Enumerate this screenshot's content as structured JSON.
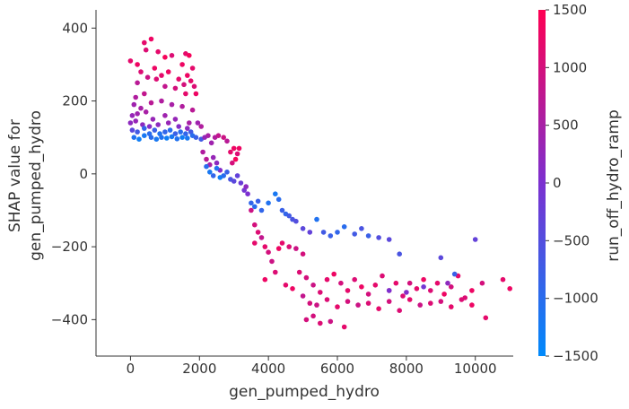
{
  "chart_data": {
    "type": "scatter",
    "title": "",
    "xlabel": "gen_pumped_hydro",
    "ylabel_lines": [
      "SHAP value for",
      "gen_pumped_hydro"
    ],
    "xlim": [
      -1000,
      11100
    ],
    "ylim": [
      -500,
      450
    ],
    "x_ticks": [
      0,
      2000,
      4000,
      6000,
      8000,
      10000
    ],
    "y_ticks": [
      400,
      200,
      0,
      -200,
      -400
    ],
    "x_tick_labels": [
      "0",
      "2000",
      "4000",
      "6000",
      "8000",
      "10000"
    ],
    "y_tick_labels": [
      "400",
      "200",
      "0",
      "−200",
      "−400"
    ],
    "grid": false,
    "colorbar": {
      "label": "run_off_hydro_ramp",
      "range": [
        -1500,
        1500
      ],
      "ticks": [
        1500,
        1000,
        500,
        0,
        -500,
        -1000,
        -1500
      ],
      "tick_labels": [
        "1500",
        "1000",
        "500",
        "0",
        "−500",
        "−1000",
        "−1500"
      ],
      "colors": [
        "#008afb",
        "#7c30d0",
        "#ff0052"
      ]
    },
    "points": [
      [
        0,
        310,
        1200
      ],
      [
        200,
        300,
        1300
      ],
      [
        400,
        360,
        1200
      ],
      [
        450,
        340,
        1100
      ],
      [
        600,
        370,
        1300
      ],
      [
        800,
        335,
        1200
      ],
      [
        1000,
        320,
        1400
      ],
      [
        1200,
        325,
        1100
      ],
      [
        1500,
        300,
        1300
      ],
      [
        1600,
        330,
        1200
      ],
      [
        1700,
        325,
        1400
      ],
      [
        1800,
        290,
        1200
      ],
      [
        300,
        280,
        1100
      ],
      [
        700,
        290,
        1300
      ],
      [
        900,
        270,
        1200
      ],
      [
        1100,
        280,
        1300
      ],
      [
        1400,
        260,
        1200
      ],
      [
        1550,
        245,
        1000
      ],
      [
        1650,
        270,
        1300
      ],
      [
        1750,
        255,
        1200
      ],
      [
        1850,
        240,
        1100
      ],
      [
        200,
        250,
        700
      ],
      [
        500,
        265,
        900
      ],
      [
        750,
        260,
        1100
      ],
      [
        1000,
        240,
        800
      ],
      [
        1300,
        235,
        1000
      ],
      [
        1600,
        220,
        1200
      ],
      [
        1900,
        220,
        1300
      ],
      [
        150,
        210,
        600
      ],
      [
        400,
        220,
        800
      ],
      [
        100,
        190,
        400
      ],
      [
        300,
        180,
        500
      ],
      [
        600,
        195,
        700
      ],
      [
        900,
        200,
        600
      ],
      [
        1200,
        190,
        500
      ],
      [
        1500,
        185,
        600
      ],
      [
        1800,
        175,
        700
      ],
      [
        50,
        160,
        300
      ],
      [
        200,
        165,
        400
      ],
      [
        450,
        170,
        500
      ],
      [
        650,
        150,
        300
      ],
      [
        1000,
        160,
        400
      ],
      [
        1300,
        150,
        300
      ],
      [
        1700,
        140,
        500
      ],
      [
        0,
        140,
        200
      ],
      [
        150,
        145,
        300
      ],
      [
        350,
        135,
        200
      ],
      [
        550,
        130,
        100
      ],
      [
        800,
        135,
        200
      ],
      [
        1100,
        140,
        300
      ],
      [
        1400,
        130,
        100
      ],
      [
        1650,
        125,
        200
      ],
      [
        1950,
        140,
        400
      ],
      [
        2050,
        130,
        600
      ],
      [
        50,
        120,
        -400
      ],
      [
        200,
        115,
        -700
      ],
      [
        400,
        125,
        -900
      ],
      [
        550,
        110,
        -1000
      ],
      [
        700,
        120,
        -800
      ],
      [
        850,
        110,
        -1100
      ],
      [
        1000,
        115,
        -900
      ],
      [
        1150,
        120,
        -1000
      ],
      [
        1300,
        110,
        -800
      ],
      [
        1450,
        115,
        -1000
      ],
      [
        1600,
        110,
        -900
      ],
      [
        1750,
        115,
        -700
      ],
      [
        100,
        100,
        -1100
      ],
      [
        250,
        95,
        -1300
      ],
      [
        400,
        105,
        -1200
      ],
      [
        600,
        100,
        -1000
      ],
      [
        750,
        95,
        -1200
      ],
      [
        900,
        100,
        -1100
      ],
      [
        1050,
        98,
        -1300
      ],
      [
        1200,
        102,
        -1200
      ],
      [
        1350,
        96,
        -1100
      ],
      [
        1500,
        100,
        -1300
      ],
      [
        1650,
        98,
        -1200
      ],
      [
        1800,
        105,
        -1000
      ],
      [
        1900,
        100,
        -800
      ],
      [
        2050,
        95,
        -700
      ],
      [
        2100,
        60,
        600
      ],
      [
        2200,
        40,
        700
      ],
      [
        2300,
        25,
        500
      ],
      [
        2400,
        45,
        300
      ],
      [
        2500,
        30,
        200
      ],
      [
        2600,
        10,
        100
      ],
      [
        2150,
        100,
        300
      ],
      [
        2250,
        105,
        500
      ],
      [
        2350,
        85,
        400
      ],
      [
        2450,
        100,
        600
      ],
      [
        2550,
        105,
        800
      ],
      [
        2700,
        100,
        900
      ],
      [
        2800,
        90,
        700
      ],
      [
        2900,
        60,
        1200
      ],
      [
        3000,
        70,
        1300
      ],
      [
        3050,
        40,
        1400
      ],
      [
        3100,
        55,
        1100
      ],
      [
        3150,
        70,
        1300
      ],
      [
        2950,
        30,
        1000
      ],
      [
        2200,
        20,
        -1000
      ],
      [
        2300,
        5,
        -1200
      ],
      [
        2400,
        -5,
        -900
      ],
      [
        2500,
        15,
        -1100
      ],
      [
        2600,
        -10,
        -1300
      ],
      [
        2700,
        -5,
        -1000
      ],
      [
        2800,
        5,
        -800
      ],
      [
        2900,
        -15,
        -600
      ],
      [
        3000,
        -20,
        -400
      ],
      [
        3100,
        -5,
        -300
      ],
      [
        3200,
        -25,
        -200
      ],
      [
        3300,
        -45,
        -100
      ],
      [
        3400,
        -55,
        0
      ],
      [
        3350,
        -35,
        200
      ],
      [
        3500,
        -80,
        -900
      ],
      [
        3600,
        -90,
        -1000
      ],
      [
        3700,
        -75,
        -800
      ],
      [
        3800,
        -100,
        -900
      ],
      [
        4000,
        -80,
        -1100
      ],
      [
        4200,
        -55,
        -1200
      ],
      [
        4300,
        -70,
        -1000
      ],
      [
        4400,
        -100,
        -800
      ],
      [
        4500,
        -110,
        -900
      ],
      [
        4600,
        -115,
        -700
      ],
      [
        4700,
        -125,
        -600
      ],
      [
        4800,
        -130,
        -500
      ],
      [
        5000,
        -150,
        -400
      ],
      [
        5200,
        -160,
        -300
      ],
      [
        5400,
        -125,
        -1100
      ],
      [
        5600,
        -160,
        -700
      ],
      [
        5800,
        -170,
        -800
      ],
      [
        6000,
        -160,
        -900
      ],
      [
        6200,
        -145,
        -1000
      ],
      [
        6500,
        -165,
        -700
      ],
      [
        6700,
        -150,
        -600
      ],
      [
        6900,
        -170,
        -800
      ],
      [
        7200,
        -175,
        -500
      ],
      [
        7500,
        -180,
        -400
      ],
      [
        7800,
        -220,
        -600
      ],
      [
        9000,
        -230,
        -400
      ],
      [
        10000,
        -180,
        -300
      ],
      [
        3500,
        -100,
        900
      ],
      [
        3600,
        -140,
        1000
      ],
      [
        3700,
        -160,
        1100
      ],
      [
        3800,
        -175,
        800
      ],
      [
        3900,
        -200,
        1200
      ],
      [
        4000,
        -215,
        1000
      ],
      [
        4100,
        -240,
        900
      ],
      [
        4200,
        -270,
        1100
      ],
      [
        4300,
        -205,
        1300
      ],
      [
        4400,
        -190,
        1200
      ],
      [
        4600,
        -200,
        1100
      ],
      [
        4800,
        -205,
        900
      ],
      [
        5000,
        -220,
        1000
      ],
      [
        3900,
        -290,
        1300
      ],
      [
        3600,
        -190,
        1200
      ],
      [
        4500,
        -305,
        1200
      ],
      [
        4700,
        -315,
        1300
      ],
      [
        4900,
        -270,
        1100
      ],
      [
        5100,
        -285,
        1000
      ],
      [
        5300,
        -305,
        900
      ],
      [
        5500,
        -325,
        1100
      ],
      [
        5700,
        -290,
        1200
      ],
      [
        5900,
        -275,
        1300
      ],
      [
        6100,
        -300,
        1000
      ],
      [
        6300,
        -320,
        1200
      ],
      [
        6500,
        -290,
        1100
      ],
      [
        6700,
        -310,
        1300
      ],
      [
        6900,
        -330,
        1000
      ],
      [
        7100,
        -305,
        1200
      ],
      [
        7300,
        -280,
        1100
      ],
      [
        7500,
        -320,
        1300
      ],
      [
        7700,
        -300,
        1200
      ],
      [
        7900,
        -335,
        1100
      ],
      [
        8100,
        -300,
        1000
      ],
      [
        8300,
        -315,
        1200
      ],
      [
        8500,
        -290,
        1300
      ],
      [
        8700,
        -320,
        1100
      ],
      [
        8900,
        -300,
        1200
      ],
      [
        9100,
        -330,
        1300
      ],
      [
        9300,
        -310,
        1000
      ],
      [
        9500,
        -280,
        1200
      ],
      [
        9700,
        -340,
        1100
      ],
      [
        9900,
        -320,
        1300
      ],
      [
        10200,
        -300,
        1000
      ],
      [
        10800,
        -290,
        1200
      ],
      [
        11000,
        -315,
        1300
      ],
      [
        5000,
        -335,
        800
      ],
      [
        5200,
        -355,
        1000
      ],
      [
        5400,
        -360,
        900
      ],
      [
        5700,
        -345,
        1100
      ],
      [
        6000,
        -365,
        1200
      ],
      [
        6300,
        -350,
        1000
      ],
      [
        6600,
        -360,
        900
      ],
      [
        6900,
        -355,
        1100
      ],
      [
        7200,
        -370,
        1200
      ],
      [
        7500,
        -350,
        1000
      ],
      [
        7800,
        -375,
        1100
      ],
      [
        8100,
        -345,
        1200
      ],
      [
        8400,
        -360,
        900
      ],
      [
        8700,
        -355,
        1100
      ],
      [
        9000,
        -350,
        1000
      ],
      [
        9300,
        -365,
        1200
      ],
      [
        9600,
        -345,
        1100
      ],
      [
        9900,
        -360,
        1300
      ],
      [
        10300,
        -395,
        1200
      ],
      [
        5100,
        -400,
        1000
      ],
      [
        5500,
        -410,
        1100
      ],
      [
        5800,
        -405,
        900
      ],
      [
        6200,
        -420,
        1200
      ],
      [
        5300,
        -390,
        1000
      ],
      [
        7500,
        -320,
        0
      ],
      [
        8000,
        -325,
        100
      ],
      [
        8500,
        -310,
        -100
      ],
      [
        9200,
        -300,
        200
      ],
      [
        9400,
        -275,
        -800
      ]
    ]
  }
}
